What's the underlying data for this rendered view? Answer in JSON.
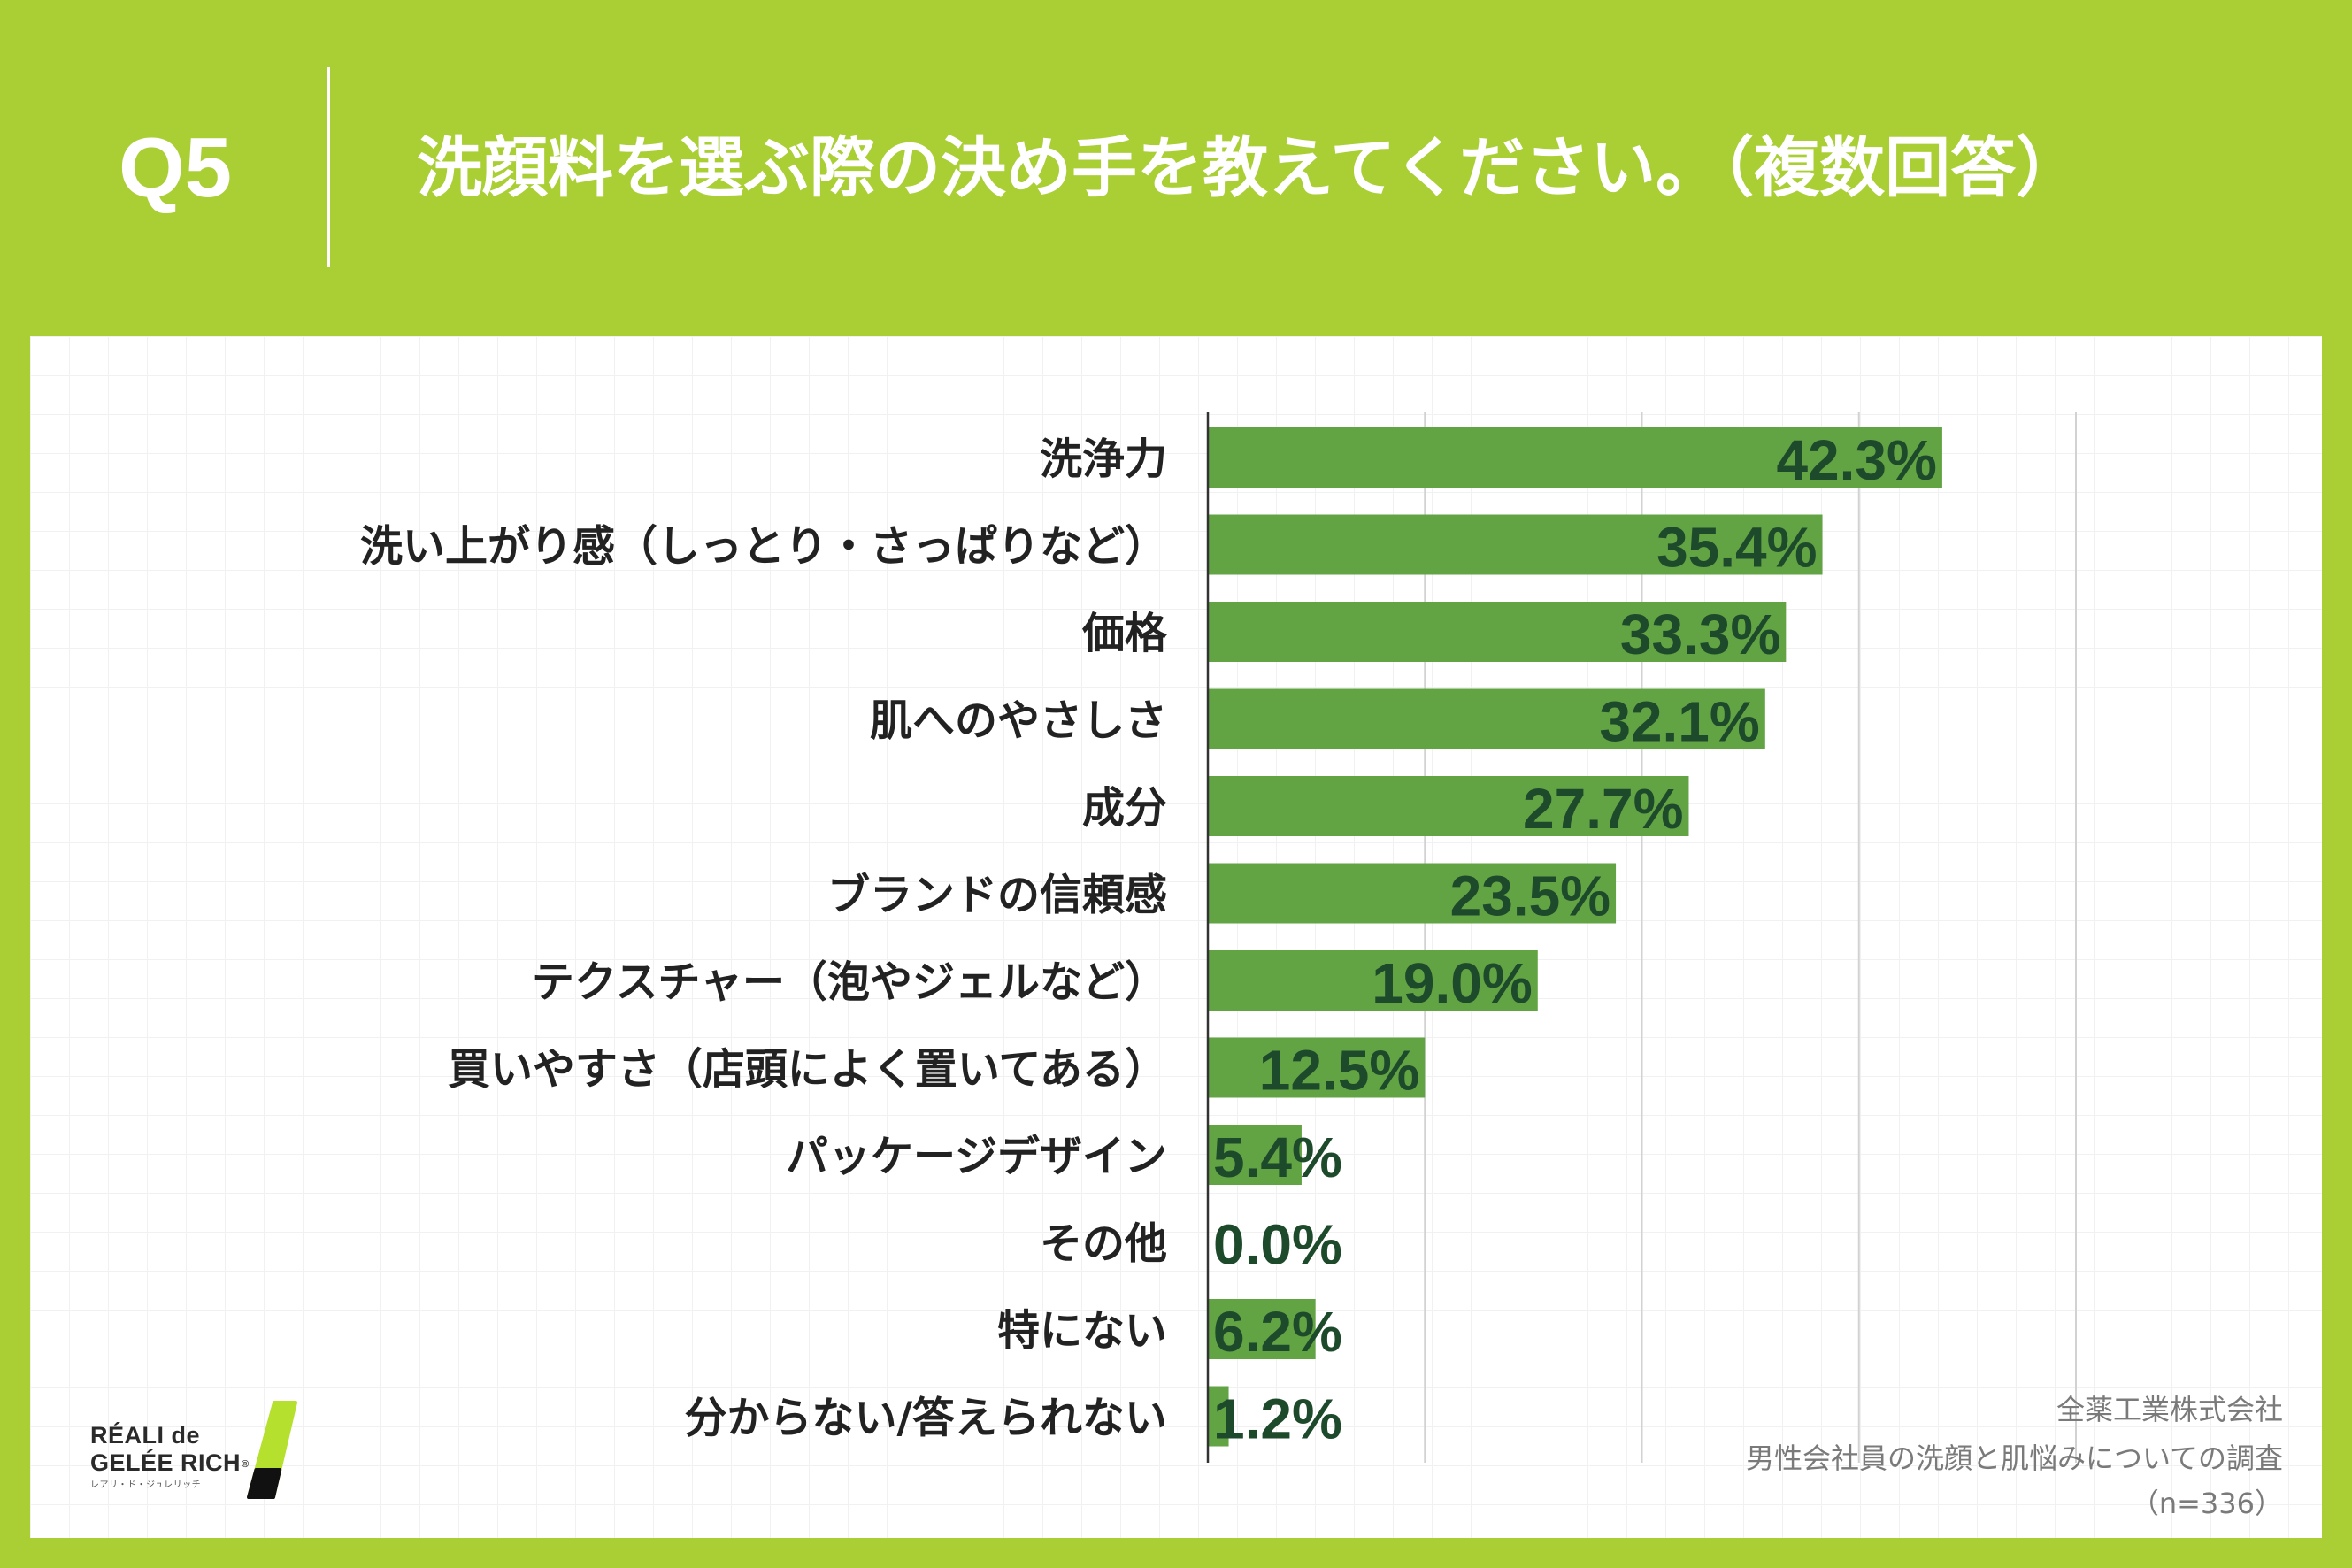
{
  "header": {
    "q_label": "Q5"
  },
  "colors": {
    "background": "#a9cf35",
    "panel": "#ffffff",
    "bar": "#62a444",
    "value_label": "#1e4a2c",
    "category_label": "#222222",
    "axis": "#333333",
    "grid": "#d2d2d2",
    "source_text": "#7a7a7a",
    "logo_green": "#b5e02e",
    "logo_black": "#111111"
  },
  "chart_data": {
    "type": "bar",
    "orientation": "horizontal",
    "title": "洗顔料を選ぶ際の決め手を教えてください。（複数回答）",
    "xlabel": "",
    "ylabel": "",
    "categories": [
      "洗浄力",
      "洗い上がり感（しっとり・さっぱりなど）",
      "価格",
      "肌へのやさしさ",
      "成分",
      "ブランドの信頼感",
      "テクスチャー（泡やジェルなど）",
      "買いやすさ（店頭によく置いてある）",
      "パッケージデザイン",
      "その他",
      "特にない",
      "分からない/答えられない"
    ],
    "values": [
      42.3,
      35.4,
      33.3,
      32.1,
      27.7,
      23.5,
      19.0,
      12.5,
      5.4,
      0.0,
      6.2,
      1.2
    ],
    "labels": [
      "42.3%",
      "35.4%",
      "33.3%",
      "32.1%",
      "27.7%",
      "23.5%",
      "19.0%",
      "12.5%",
      "5.4%",
      "0.0%",
      "6.2%",
      "1.2%"
    ],
    "xlim": [
      0,
      50
    ],
    "grid": true,
    "grid_step": 12.5,
    "legend": "none"
  },
  "source": {
    "company": "全薬工業株式会社",
    "survey": "男性会社員の洗顔と肌悩みについての調査",
    "sample": "（n=336）"
  },
  "logo": {
    "line1": "RÉALI de",
    "line2": "GELÉE RICH",
    "registered": "®",
    "kana": "レアリ・ド・ジュレリッチ"
  }
}
